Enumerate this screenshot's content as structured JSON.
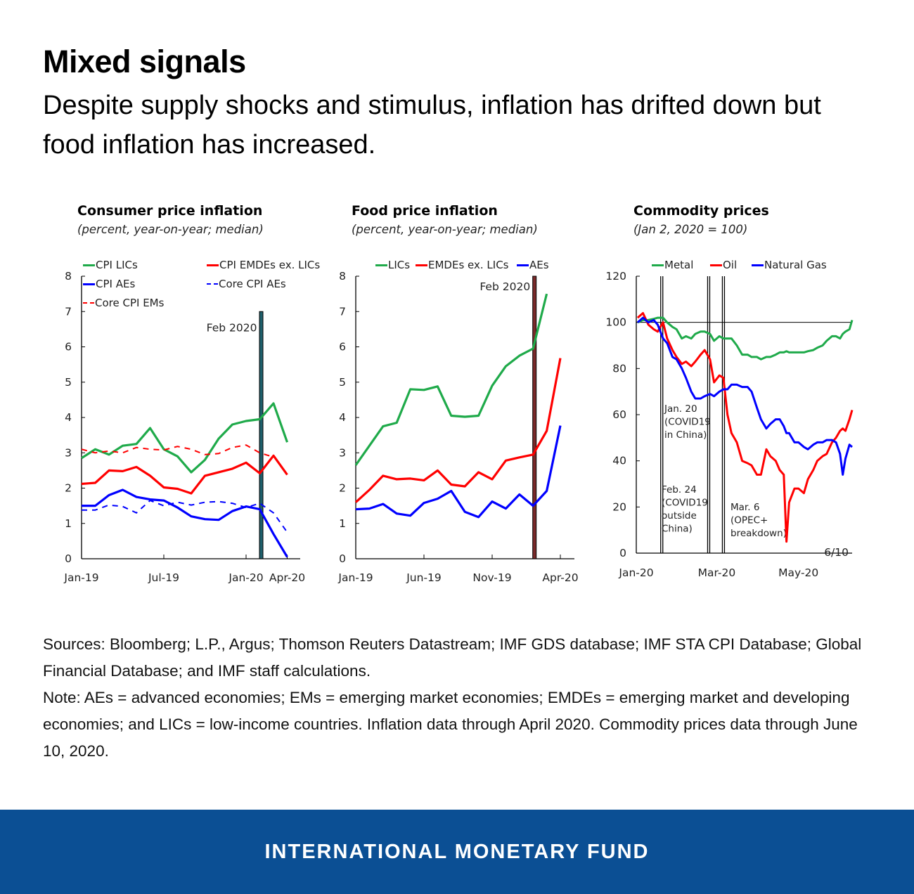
{
  "header": {
    "title": "Mixed signals",
    "subtitle": "Despite supply shocks and stimulus, inflation has drifted down but food inflation has increased."
  },
  "notes": {
    "sources": "Sources: Bloomberg; L.P., Argus; Thomson Reuters Datastream; IMF GDS database; IMF STA CPI Database; Global Financial Database; and IMF staff calculations.",
    "note": "Note: AEs = advanced economies; EMs = emerging market economies; EMDEs = emerging market and developing economies; and LICs = low-income countries. Inflation data through April 2020. Commodity prices data through June 10, 2020."
  },
  "footer": {
    "label": "INTERNATIONAL MONETARY FUND"
  },
  "chart_data": [
    {
      "type": "line",
      "title": "Consumer price inflation",
      "subtitle": "(percent, year-on-year; median)",
      "categories": [
        "Jan-19",
        "Feb-19",
        "Mar-19",
        "Apr-19",
        "May-19",
        "Jun-19",
        "Jul-19",
        "Aug-19",
        "Sep-19",
        "Oct-19",
        "Nov-19",
        "Dec-19",
        "Jan-20",
        "Feb-20",
        "Mar-20",
        "Apr-20"
      ],
      "xticks": [
        "Jan-19",
        "Jul-19",
        "Jan-20",
        "Apr-20"
      ],
      "ylim": [
        0,
        8
      ],
      "yticks": [
        "0",
        "1",
        "2",
        "3",
        "4",
        "5",
        "6",
        "7",
        "8"
      ],
      "legend_placement": "top",
      "annotation": {
        "label": "Feb 2020",
        "at": "Feb-20",
        "color": "#1f5f6b"
      },
      "series": [
        {
          "name": "CPI LICs",
          "color": "#1faa4a",
          "dash": false,
          "values": [
            2.85,
            3.1,
            2.95,
            3.2,
            3.25,
            3.7,
            3.1,
            2.9,
            2.45,
            2.8,
            3.4,
            3.8,
            3.9,
            3.95,
            4.4,
            3.3
          ]
        },
        {
          "name": "CPI EMDEs ex. LICs",
          "color": "#ff0000",
          "dash": false,
          "values": [
            2.12,
            2.15,
            2.5,
            2.48,
            2.6,
            2.35,
            2.02,
            1.98,
            1.85,
            2.35,
            2.45,
            2.55,
            2.72,
            2.42,
            2.92,
            2.38
          ]
        },
        {
          "name": "CPI AEs",
          "color": "#0000ff",
          "dash": false,
          "values": [
            1.5,
            1.5,
            1.8,
            1.95,
            1.75,
            1.68,
            1.65,
            1.45,
            1.2,
            1.12,
            1.1,
            1.35,
            1.48,
            1.4,
            0.7,
            0.05
          ]
        },
        {
          "name": "Core CPI AEs",
          "color": "#0000ff",
          "dash": true,
          "values": [
            1.38,
            1.38,
            1.52,
            1.48,
            1.3,
            1.65,
            1.5,
            1.6,
            1.52,
            1.6,
            1.62,
            1.57,
            1.45,
            1.57,
            1.3,
            0.75
          ]
        },
        {
          "name": "Core CPI EMs",
          "color": "#ff0000",
          "dash": true,
          "values": [
            3.1,
            3.0,
            3.05,
            3.0,
            3.15,
            3.1,
            3.08,
            3.18,
            3.1,
            2.95,
            2.98,
            3.15,
            3.22,
            3.0,
            2.88,
            null
          ]
        }
      ]
    },
    {
      "type": "line",
      "title": "Food price inflation",
      "subtitle": "(percent, year-on-year; median)",
      "categories": [
        "Jan-19",
        "Feb-19",
        "Mar-19",
        "Apr-19",
        "May-19",
        "Jun-19",
        "Jul-19",
        "Aug-19",
        "Sep-19",
        "Oct-19",
        "Nov-19",
        "Dec-19",
        "Jan-20",
        "Feb-20",
        "Mar-20",
        "Apr-20"
      ],
      "xticks": [
        "Jan-19",
        "Jun-19",
        "Nov-19",
        "Apr-20"
      ],
      "ylim": [
        0,
        8
      ],
      "yticks": [
        "0",
        "1",
        "2",
        "3",
        "4",
        "5",
        "6",
        "7",
        "8"
      ],
      "legend_placement": "top",
      "annotation": {
        "label": "Feb 2020",
        "at": "Feb-20",
        "color": "#7a2a2a"
      },
      "series": [
        {
          "name": "LICs",
          "color": "#1faa4a",
          "dash": false,
          "values": [
            2.65,
            3.2,
            3.75,
            3.85,
            4.8,
            4.78,
            4.88,
            4.05,
            4.02,
            4.05,
            4.9,
            5.45,
            5.75,
            5.95,
            7.5,
            null
          ]
        },
        {
          "name": "EMDEs ex. LICs",
          "color": "#ff0000",
          "dash": false,
          "values": [
            1.6,
            1.95,
            2.35,
            2.25,
            2.27,
            2.22,
            2.5,
            2.1,
            2.05,
            2.45,
            2.25,
            2.78,
            2.87,
            2.95,
            3.62,
            5.68
          ]
        },
        {
          "name": "AEs",
          "color": "#0000ff",
          "dash": false,
          "values": [
            1.4,
            1.42,
            1.55,
            1.28,
            1.22,
            1.58,
            1.7,
            1.92,
            1.33,
            1.18,
            1.62,
            1.42,
            1.82,
            1.5,
            1.92,
            3.77
          ]
        }
      ]
    },
    {
      "type": "line",
      "title": "Commodity prices",
      "subtitle": "(Jan 2, 2020 = 100)",
      "xticks": [
        {
          "label": "Jan-20",
          "date": "2020-01-01"
        },
        {
          "label": "Mar-20",
          "date": "2020-03-01"
        },
        {
          "label": "May-20",
          "date": "2020-05-01"
        }
      ],
      "xlim": [
        "2020-01-01",
        "2020-06-10"
      ],
      "ylim": [
        0,
        120
      ],
      "yticks": [
        "0",
        "20",
        "40",
        "60",
        "80",
        "100",
        "120"
      ],
      "reference_line": 100,
      "end_label": "6/10",
      "legend_placement": "top",
      "events": [
        {
          "date": "2020-01-20",
          "lines": [
            "Jan. 20",
            "(COVID19",
            "in China)"
          ]
        },
        {
          "date": "2020-02-24",
          "lines": [
            "Feb. 24",
            "(COVID19",
            "outside",
            "China)"
          ]
        },
        {
          "date": "2020-03-06",
          "lines": [
            "Mar. 6",
            "(OPEC+",
            "breakdown)"
          ]
        }
      ],
      "dates": [
        "2020-01-02",
        "2020-01-06",
        "2020-01-10",
        "2020-01-14",
        "2020-01-17",
        "2020-01-21",
        "2020-01-24",
        "2020-01-28",
        "2020-01-31",
        "2020-02-04",
        "2020-02-07",
        "2020-02-11",
        "2020-02-14",
        "2020-02-18",
        "2020-02-21",
        "2020-02-25",
        "2020-02-28",
        "2020-03-03",
        "2020-03-06",
        "2020-03-09",
        "2020-03-12",
        "2020-03-16",
        "2020-03-20",
        "2020-03-24",
        "2020-03-27",
        "2020-03-31",
        "2020-04-03",
        "2020-04-07",
        "2020-04-10",
        "2020-04-14",
        "2020-04-17",
        "2020-04-20",
        "2020-04-22",
        "2020-04-24",
        "2020-04-28",
        "2020-05-01",
        "2020-05-05",
        "2020-05-08",
        "2020-05-12",
        "2020-05-15",
        "2020-05-19",
        "2020-05-22",
        "2020-05-26",
        "2020-05-29",
        "2020-06-01",
        "2020-06-03",
        "2020-06-05",
        "2020-06-08",
        "2020-06-10"
      ],
      "series": [
        {
          "name": "Metal",
          "color": "#1faa4a",
          "values": [
            100,
            101,
            101,
            101.5,
            102,
            102,
            100,
            98,
            97,
            93,
            94,
            93,
            95,
            96,
            96,
            95,
            92,
            94,
            93,
            93,
            93,
            90,
            86,
            86,
            85,
            85,
            84,
            85,
            85,
            86,
            87,
            87,
            87.5,
            87,
            87,
            87,
            87,
            87.5,
            88,
            89,
            90,
            92,
            94,
            94,
            93,
            95,
            96,
            97,
            101
          ]
        },
        {
          "name": "Oil",
          "color": "#ff0000",
          "values": [
            102,
            104,
            99,
            97,
            96,
            100,
            93,
            88,
            85,
            82,
            83,
            81,
            83,
            86,
            88,
            84,
            74,
            77,
            76,
            60,
            52,
            48,
            40,
            39,
            38,
            34,
            34,
            45,
            42,
            40,
            36,
            34,
            5,
            22,
            28,
            28,
            26,
            32,
            36,
            40,
            42,
            43,
            48,
            50,
            53,
            54,
            53,
            58,
            62
          ]
        },
        {
          "name": "Natural Gas",
          "color": "#0000ff",
          "values": [
            100,
            102,
            100,
            101,
            99,
            93,
            91,
            85,
            84,
            80,
            76,
            70,
            67,
            67,
            68,
            69,
            68,
            70,
            71,
            71,
            73,
            73,
            72,
            72,
            70,
            63,
            58,
            54,
            56,
            58,
            58,
            55,
            52,
            52,
            48,
            48,
            46,
            45,
            47,
            48,
            48,
            49,
            49,
            48,
            43,
            34,
            41,
            47,
            46
          ]
        }
      ]
    }
  ]
}
